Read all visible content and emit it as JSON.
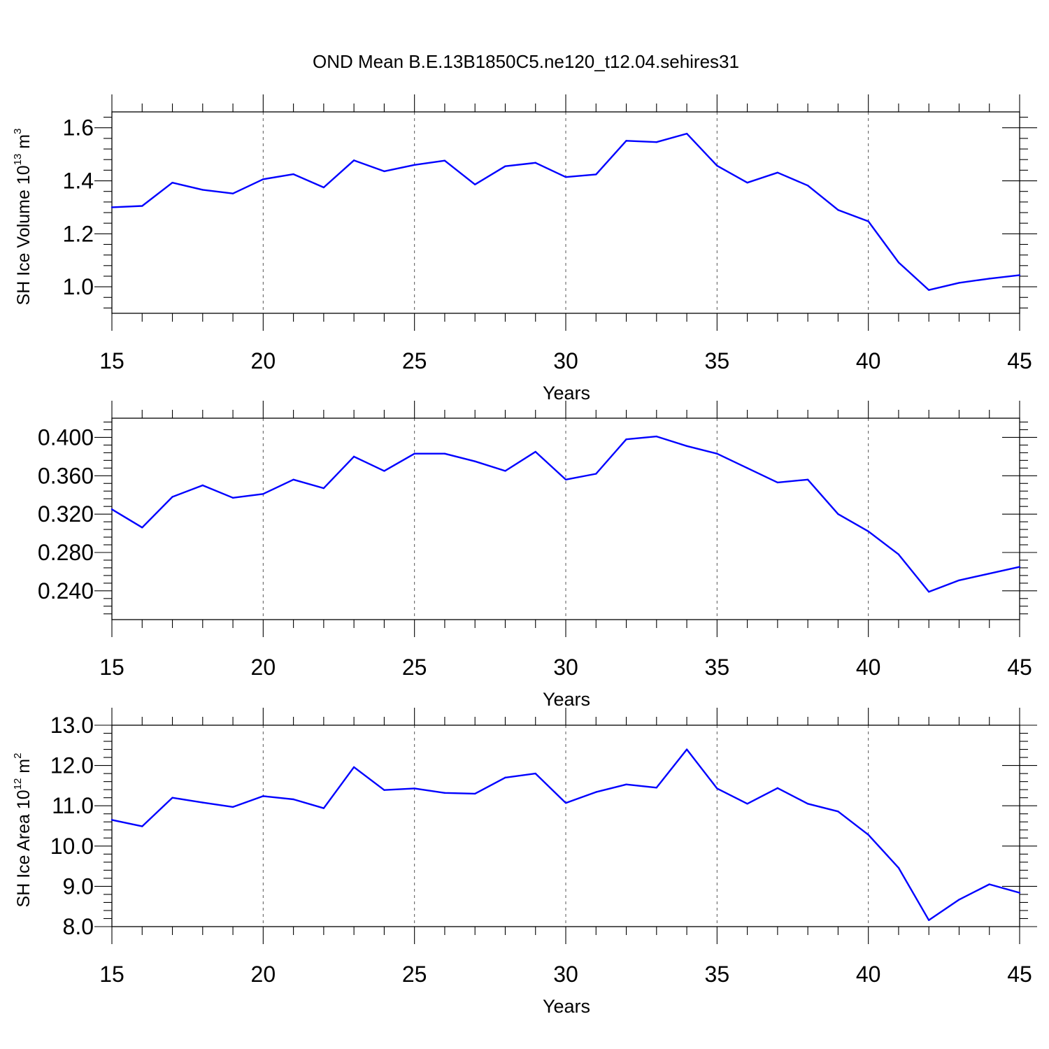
{
  "title": "OND Mean B.E.13B1850C5.ne120_t12.04.sehires31",
  "chart_data": [
    {
      "type": "line",
      "xlabel": "Years",
      "ylabel": "SH Ice Volume 10",
      "ylabel_exp": "13",
      "ylabel_unit": " m",
      "ylabel_unit_exp": "3",
      "xlim": [
        15,
        45
      ],
      "ylim": [
        0.9,
        1.66
      ],
      "x_ticks": [
        15,
        20,
        25,
        30,
        35,
        40,
        45
      ],
      "y_ticks": [
        "1.0",
        "1.2",
        "1.4",
        "1.6"
      ],
      "x": [
        15,
        16,
        17,
        18,
        19,
        20,
        21,
        22,
        23,
        24,
        25,
        26,
        27,
        28,
        29,
        30,
        31,
        32,
        33,
        34,
        35,
        36,
        37,
        38,
        39,
        40,
        41,
        42,
        43,
        44,
        45
      ],
      "values": [
        1.3,
        1.305,
        1.393,
        1.366,
        1.352,
        1.406,
        1.425,
        1.375,
        1.477,
        1.436,
        1.46,
        1.476,
        1.386,
        1.455,
        1.468,
        1.414,
        1.424,
        1.551,
        1.546,
        1.578,
        1.457,
        1.393,
        1.431,
        1.382,
        1.29,
        1.247,
        1.092,
        0.988,
        1.015,
        1.031,
        1.044
      ],
      "grid": "vertical-dashed",
      "color": "#0000ff"
    },
    {
      "type": "line",
      "xlabel": "Years",
      "ylabel": "",
      "xlim": [
        15,
        45
      ],
      "ylim": [
        0.21,
        0.42
      ],
      "x_ticks": [
        15,
        20,
        25,
        30,
        35,
        40,
        45
      ],
      "y_ticks": [
        "0.240",
        "0.280",
        "0.320",
        "0.360",
        "0.400"
      ],
      "x": [
        15,
        16,
        17,
        18,
        19,
        20,
        21,
        22,
        23,
        24,
        25,
        26,
        27,
        28,
        29,
        30,
        31,
        32,
        33,
        34,
        35,
        36,
        37,
        38,
        39,
        40,
        41,
        42,
        43,
        44,
        45
      ],
      "values": [
        0.325,
        0.306,
        0.338,
        0.35,
        0.337,
        0.341,
        0.356,
        0.347,
        0.38,
        0.365,
        0.383,
        0.383,
        0.375,
        0.365,
        0.385,
        0.356,
        0.362,
        0.398,
        0.401,
        0.391,
        0.383,
        0.368,
        0.353,
        0.356,
        0.32,
        0.302,
        0.278,
        0.239,
        0.251,
        0.258,
        0.265
      ],
      "grid": "vertical-dashed",
      "color": "#0000ff"
    },
    {
      "type": "line",
      "xlabel": "Years",
      "ylabel": "SH Ice Area 10",
      "ylabel_exp": "12",
      "ylabel_unit": " m",
      "ylabel_unit_exp": "2",
      "xlim": [
        15,
        45
      ],
      "ylim": [
        8.0,
        13.0
      ],
      "x_ticks": [
        15,
        20,
        25,
        30,
        35,
        40,
        45
      ],
      "y_ticks": [
        "8.0",
        "9.0",
        "10.0",
        "11.0",
        "12.0",
        "13.0"
      ],
      "x": [
        15,
        16,
        17,
        18,
        19,
        20,
        21,
        22,
        23,
        24,
        25,
        26,
        27,
        28,
        29,
        30,
        31,
        32,
        33,
        34,
        35,
        36,
        37,
        38,
        39,
        40,
        41,
        42,
        43,
        44,
        45
      ],
      "values": [
        10.65,
        10.49,
        11.2,
        11.08,
        10.97,
        11.24,
        11.16,
        10.94,
        11.96,
        11.39,
        11.43,
        11.32,
        11.3,
        11.7,
        11.8,
        11.07,
        11.34,
        11.53,
        11.45,
        12.4,
        11.43,
        11.05,
        11.44,
        11.05,
        10.86,
        10.28,
        9.46,
        8.16,
        8.67,
        9.05,
        8.84
      ],
      "grid": "vertical-dashed",
      "color": "#0000ff"
    }
  ]
}
